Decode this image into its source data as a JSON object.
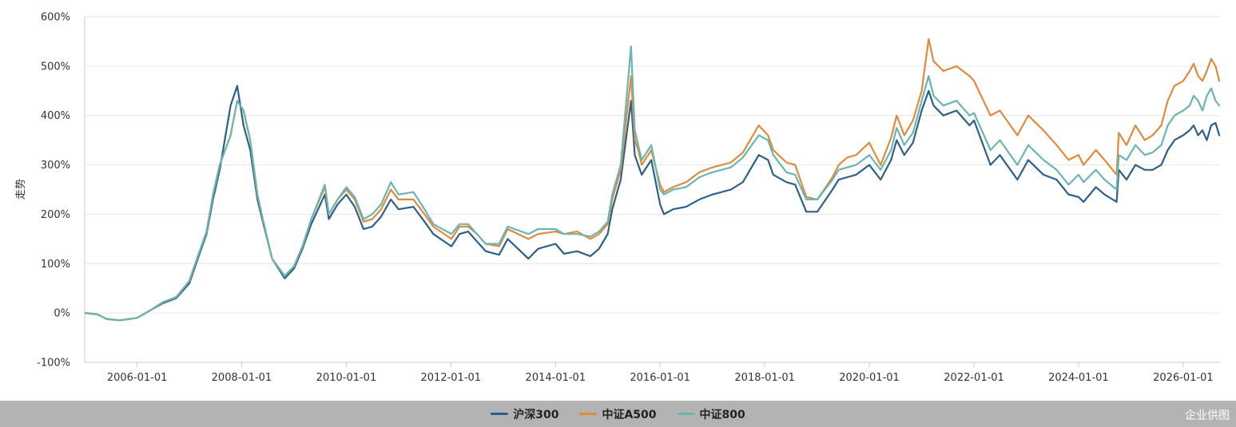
{
  "chart_data": {
    "type": "line",
    "title": "",
    "xlabel": "",
    "ylabel": "走势",
    "ylim": [
      -100,
      600
    ],
    "yticks": [
      "600%",
      "500%",
      "400%",
      "300%",
      "200%",
      "100%",
      "0%",
      "-100%"
    ],
    "ytick_values": [
      600,
      500,
      400,
      300,
      200,
      100,
      0,
      -100
    ],
    "xrange": [
      "2004-12-31",
      "2026-09-15"
    ],
    "xticks": [
      "2006-01-01",
      "2008-01-01",
      "2010-01-01",
      "2012-01-01",
      "2014-01-01",
      "2016-01-01",
      "2018-01-01",
      "2020-01-01",
      "2022-01-01",
      "2024-01-01",
      "2026-01-01"
    ],
    "grid": true,
    "legend_position": "bottom",
    "x": [
      "2005-01-04",
      "2005-04-01",
      "2005-06-01",
      "2005-09-01",
      "2006-01-01",
      "2006-04-01",
      "2006-07-01",
      "2006-10-01",
      "2007-01-01",
      "2007-03-01",
      "2007-05-01",
      "2007-06-15",
      "2007-08-01",
      "2007-10-16",
      "2007-12-01",
      "2008-01-14",
      "2008-03-01",
      "2008-04-20",
      "2008-06-01",
      "2008-08-01",
      "2008-10-28",
      "2009-01-01",
      "2009-03-01",
      "2009-05-01",
      "2009-08-04",
      "2009-09-01",
      "2009-11-01",
      "2010-01-01",
      "2010-03-01",
      "2010-05-01",
      "2010-07-01",
      "2010-09-01",
      "2010-11-08",
      "2011-01-01",
      "2011-04-15",
      "2011-07-01",
      "2011-09-01",
      "2012-01-05",
      "2012-03-01",
      "2012-05-01",
      "2012-07-01",
      "2012-09-01",
      "2012-12-03",
      "2013-02-01",
      "2013-06-25",
      "2013-09-01",
      "2014-01-01",
      "2014-03-01",
      "2014-06-01",
      "2014-09-01",
      "2014-11-01",
      "2014-12-31",
      "2015-02-01",
      "2015-04-01",
      "2015-06-12",
      "2015-07-08",
      "2015-08-01",
      "2015-08-26",
      "2015-11-01",
      "2016-01-01",
      "2016-01-28",
      "2016-04-01",
      "2016-07-01",
      "2016-10-01",
      "2017-01-01",
      "2017-05-10",
      "2017-08-01",
      "2017-11-20",
      "2018-01-24",
      "2018-03-01",
      "2018-06-01",
      "2018-08-01",
      "2018-10-18",
      "2019-01-03",
      "2019-04-19",
      "2019-06-01",
      "2019-08-01",
      "2019-10-01",
      "2020-01-01",
      "2020-03-20",
      "2020-06-01",
      "2020-07-10",
      "2020-09-01",
      "2020-11-01",
      "2021-01-01",
      "2021-02-18",
      "2021-03-25",
      "2021-06-01",
      "2021-09-01",
      "2021-12-01",
      "2022-01-01",
      "2022-04-26",
      "2022-07-01",
      "2022-10-31",
      "2023-01-15",
      "2023-05-01",
      "2023-08-01",
      "2023-10-23",
      "2024-01-01",
      "2024-02-05",
      "2024-05-01",
      "2024-07-01",
      "2024-09-23",
      "2024-10-08",
      "2024-12-01",
      "2025-02-01",
      "2025-04-08",
      "2025-06-01",
      "2025-08-01",
      "2025-09-15",
      "2025-11-01",
      "2026-01-01",
      "2026-02-15",
      "2026-03-15",
      "2026-04-15",
      "2026-05-15",
      "2026-06-15",
      "2026-07-15",
      "2026-08-15",
      "2026-09-10"
    ],
    "series": [
      {
        "name": "沪深300",
        "color": "#2d5f8a",
        "values": [
          0,
          -3,
          -12,
          -15,
          -10,
          5,
          20,
          30,
          60,
          110,
          160,
          230,
          290,
          420,
          460,
          380,
          330,
          230,
          180,
          110,
          70,
          90,
          130,
          180,
          240,
          190,
          220,
          240,
          215,
          170,
          175,
          195,
          230,
          210,
          215,
          185,
          160,
          135,
          160,
          165,
          145,
          125,
          118,
          150,
          110,
          130,
          140,
          120,
          125,
          115,
          130,
          160,
          210,
          270,
          430,
          320,
          300,
          280,
          310,
          220,
          200,
          210,
          215,
          230,
          240,
          250,
          265,
          320,
          310,
          280,
          265,
          260,
          205,
          205,
          250,
          270,
          275,
          280,
          300,
          270,
          310,
          350,
          320,
          345,
          410,
          450,
          420,
          400,
          410,
          380,
          390,
          300,
          320,
          270,
          310,
          280,
          270,
          240,
          235,
          225,
          255,
          240,
          225,
          290,
          270,
          300,
          290,
          290,
          300,
          330,
          350,
          360,
          370,
          380,
          360,
          370,
          350,
          380,
          385,
          360
        ]
      },
      {
        "name": "中证A500",
        "color": "#e08a3c",
        "values": [
          0,
          -3,
          -12,
          -15,
          -10,
          5,
          22,
          32,
          65,
          115,
          165,
          240,
          300,
          360,
          430,
          410,
          350,
          240,
          185,
          110,
          75,
          95,
          135,
          190,
          255,
          200,
          230,
          250,
          230,
          185,
          190,
          210,
          250,
          230,
          230,
          200,
          175,
          150,
          175,
          175,
          160,
          140,
          135,
          170,
          150,
          160,
          165,
          160,
          165,
          150,
          160,
          180,
          230,
          290,
          480,
          350,
          330,
          300,
          330,
          260,
          245,
          255,
          265,
          285,
          295,
          305,
          325,
          380,
          360,
          330,
          305,
          300,
          235,
          230,
          275,
          300,
          315,
          320,
          345,
          300,
          355,
          400,
          360,
          390,
          450,
          555,
          510,
          490,
          500,
          480,
          470,
          400,
          410,
          360,
          400,
          370,
          340,
          310,
          320,
          300,
          330,
          310,
          280,
          365,
          340,
          380,
          350,
          360,
          380,
          430,
          460,
          470,
          490,
          505,
          480,
          470,
          490,
          515,
          500,
          470
        ]
      },
      {
        "name": "中证800",
        "color": "#6ab5b1",
        "values": [
          0,
          -3,
          -12,
          -15,
          -10,
          5,
          22,
          32,
          65,
          115,
          165,
          240,
          300,
          360,
          430,
          410,
          350,
          240,
          185,
          110,
          75,
          95,
          135,
          190,
          260,
          200,
          230,
          255,
          235,
          190,
          200,
          220,
          265,
          240,
          245,
          210,
          180,
          160,
          180,
          180,
          160,
          140,
          140,
          175,
          160,
          170,
          170,
          160,
          160,
          155,
          165,
          185,
          240,
          300,
          540,
          370,
          340,
          310,
          340,
          250,
          240,
          250,
          255,
          275,
          285,
          295,
          315,
          360,
          350,
          320,
          285,
          280,
          230,
          230,
          270,
          290,
          295,
          300,
          320,
          290,
          330,
          375,
          340,
          365,
          430,
          480,
          440,
          420,
          430,
          400,
          405,
          330,
          350,
          300,
          340,
          310,
          290,
          260,
          280,
          265,
          290,
          270,
          250,
          320,
          310,
          340,
          320,
          325,
          340,
          380,
          400,
          410,
          420,
          440,
          430,
          410,
          440,
          455,
          430,
          420
        ]
      }
    ]
  },
  "legend": {
    "items": [
      "沪深300",
      "中证A500",
      "中证800"
    ]
  },
  "watermark": "企业供图"
}
